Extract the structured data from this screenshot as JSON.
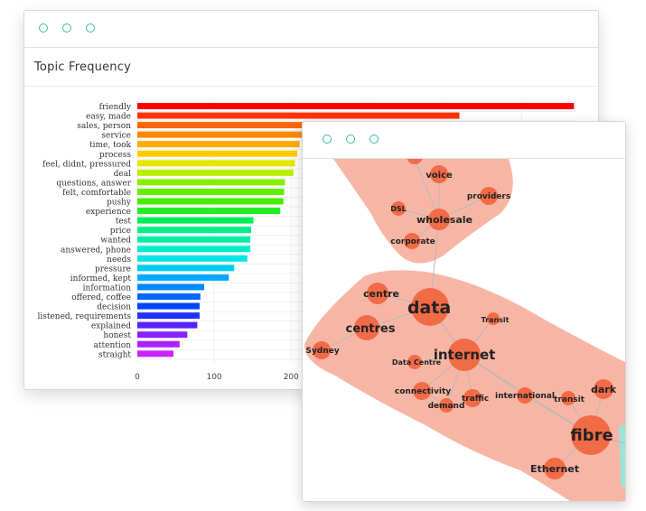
{
  "colors": {
    "window_dot": "#3fb8a6",
    "cluster_fill": "#f4a48c",
    "node_fill": "#f26b47"
  },
  "window1": {
    "title": "Topic Frequency",
    "dot_icons": [
      "circle-icon",
      "circle-icon",
      "circle-icon"
    ]
  },
  "window2": {
    "dot_icons": [
      "circle-icon",
      "circle-icon",
      "circle-icon"
    ]
  },
  "chart_data": {
    "type": "bar",
    "orientation": "horizontal",
    "title": "Topic Frequency",
    "xlabel": "",
    "ylabel": "",
    "xlim": [
      0,
      570
    ],
    "x_ticks": [
      0,
      100,
      200
    ],
    "grid": true,
    "categories": [
      "friendly",
      "easy, made",
      "sales, person",
      "service",
      "time, took",
      "process",
      "feel, didnt, pressured",
      "deal",
      "questions, answer",
      "felt, comfortable",
      "pushy",
      "experience",
      "test",
      "price",
      "wanted",
      "answered, phone",
      "needs",
      "pressure",
      "informed, kept",
      "information",
      "offered, coffee",
      "decision",
      "listened, requirements",
      "explained",
      "honest",
      "attention",
      "straight"
    ],
    "values": [
      568,
      419,
      218,
      214,
      211,
      208,
      205,
      203,
      192,
      191,
      190,
      186,
      151,
      148,
      147,
      147,
      143,
      126,
      119,
      87,
      82,
      81,
      81,
      78,
      65,
      55,
      47
    ],
    "bar_colors": [
      "#ff0000",
      "#ff3300",
      "#ff6600",
      "#ff8800",
      "#ffaa00",
      "#ffcc00",
      "#e6e600",
      "#bbee00",
      "#88ee00",
      "#66ee00",
      "#44ee00",
      "#22ee22",
      "#00ee55",
      "#00ee88",
      "#00eeaa",
      "#00eecc",
      "#00e5e5",
      "#00ccee",
      "#00aaff",
      "#0088ff",
      "#0066ff",
      "#0044ff",
      "#2233ff",
      "#5522ff",
      "#8822ff",
      "#aa22ff",
      "#cc22ff"
    ]
  },
  "network": {
    "labels": {
      "voice": "voice",
      "providers": "providers",
      "dsl": "DSL",
      "wholesale": "wholesale",
      "corporate": "corporate",
      "data": "data",
      "centre": "centre",
      "centres": "centres",
      "transit_cap": "Transit",
      "sydney": "Sydney",
      "internet": "internet",
      "data_centre": "Data Centre",
      "connectivity": "connectivity",
      "traffic": "traffic",
      "demand": "demand",
      "international": "international",
      "transit": "transit",
      "dark": "dark",
      "fibre": "fibre",
      "ethernet": "Ethernet"
    }
  }
}
